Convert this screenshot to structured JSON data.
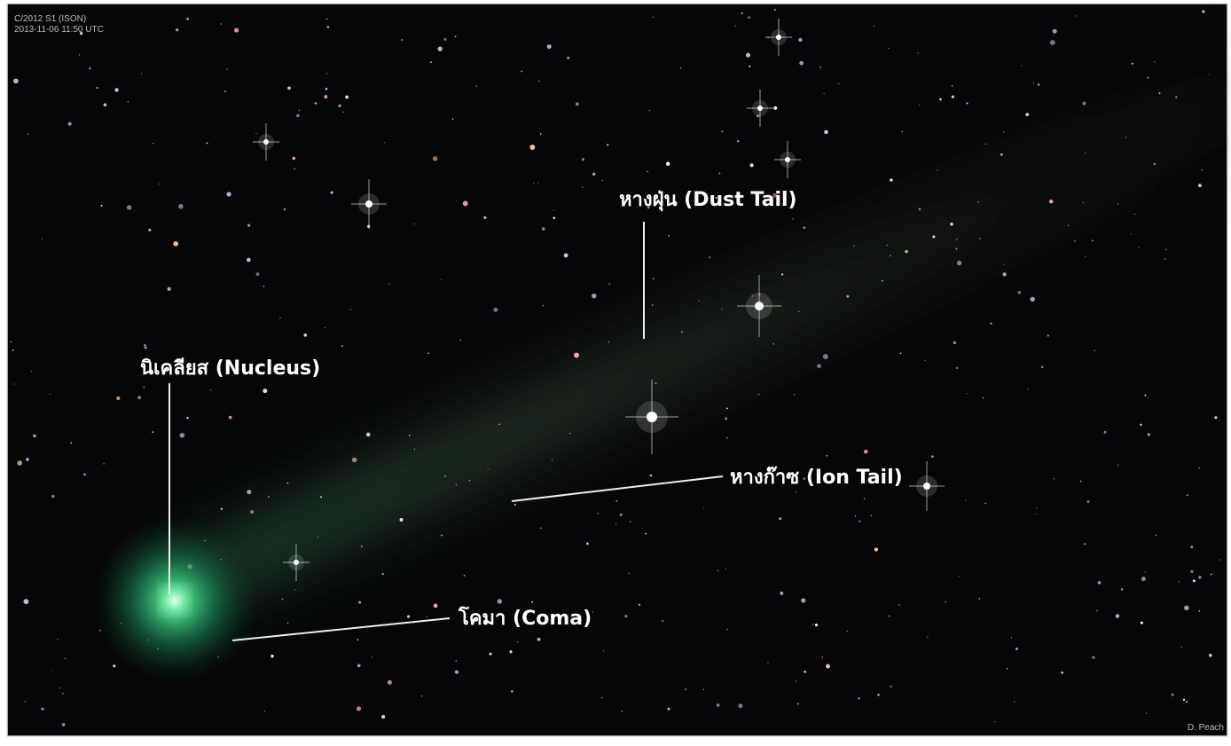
{
  "header": {
    "title": "C/2012 S1 (ISON)",
    "timestamp": "2013-11-06  11:50 UTC"
  },
  "labels": {
    "dust_tail": "หางฝุ่น (Dust Tail)",
    "nucleus": "นิเคลียส (Nucleus)",
    "ion_tail": "หางก๊าซ (Ion Tail)",
    "coma": "โคมา (Coma)"
  },
  "credit": "D. Peach"
}
